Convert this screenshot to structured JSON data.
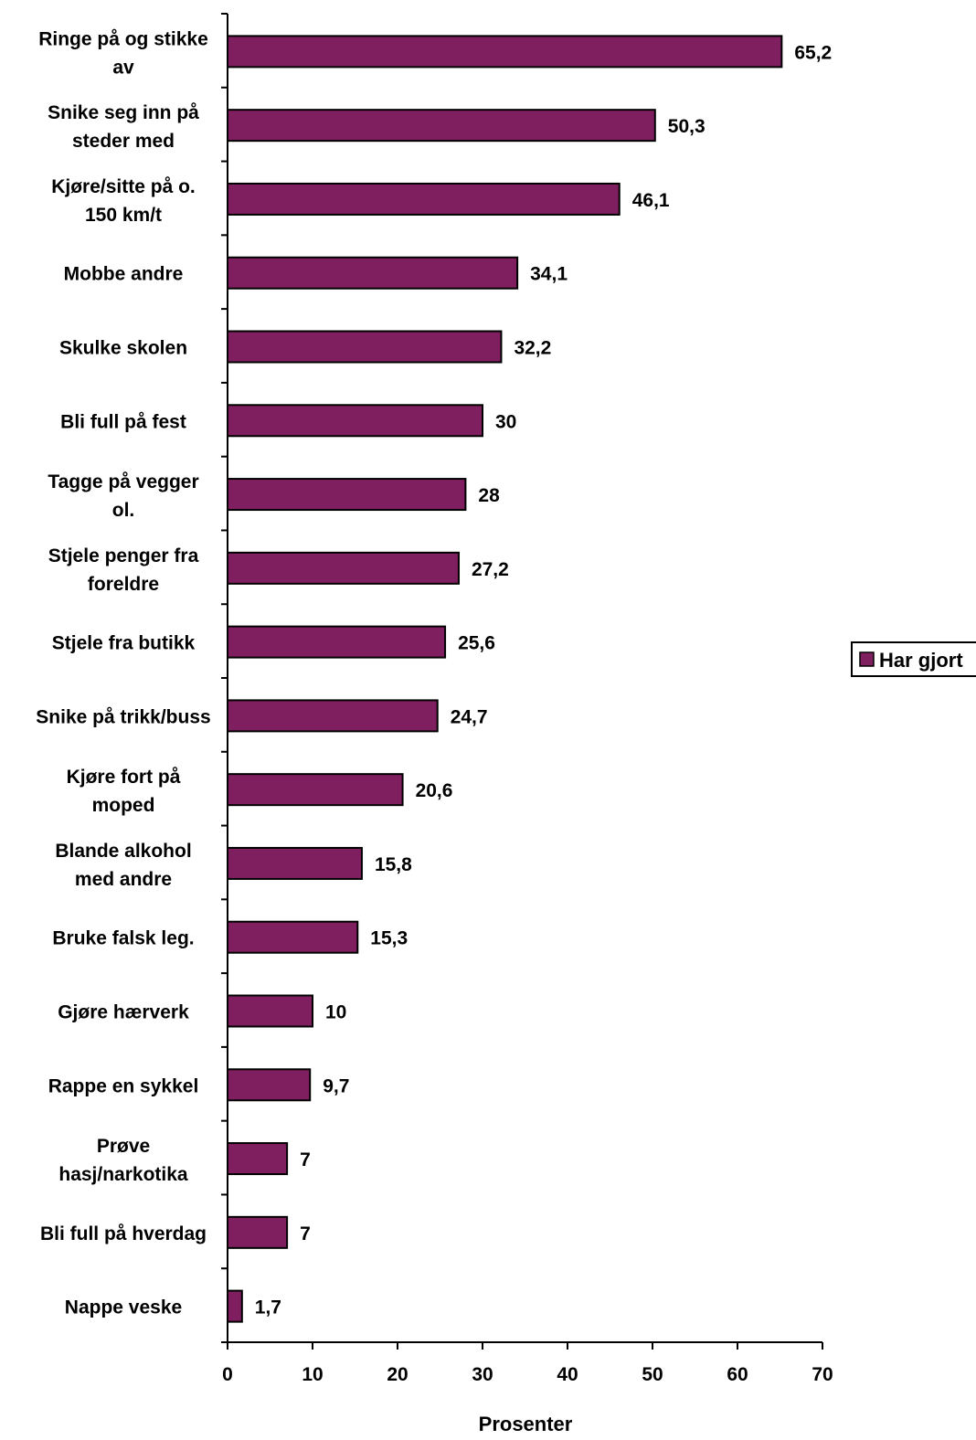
{
  "chart_data": {
    "type": "bar",
    "orientation": "horizontal",
    "categories": [
      "Ringe på og stikke av",
      "Snike seg inn på steder med",
      "Kjøre/sitte på o. 150 km/t",
      "Mobbe andre",
      "Skulke skolen",
      "Bli full på fest",
      "Tagge på vegger ol.",
      "Stjele penger fra foreldre",
      "Stjele fra butikk",
      "Snike på trikk/buss",
      "Kjøre fort på moped",
      "Blande alkohol med andre",
      "Bruke falsk leg.",
      "Gjøre hærverk",
      "Rappe en sykkel",
      "Prøve hasj/narkotika",
      "Bli full på hverdag",
      "Nappe veske"
    ],
    "category_lines": [
      [
        "Ringe på og stikke",
        "av"
      ],
      [
        "Snike seg inn på",
        "steder med"
      ],
      [
        "Kjøre/sitte på o.",
        "150 km/t"
      ],
      [
        "Mobbe andre"
      ],
      [
        "Skulke skolen"
      ],
      [
        "Bli full på fest"
      ],
      [
        "Tagge på vegger",
        "ol."
      ],
      [
        "Stjele penger fra",
        "foreldre"
      ],
      [
        "Stjele fra butikk"
      ],
      [
        "Snike på trikk/buss"
      ],
      [
        "Kjøre fort på",
        "moped"
      ],
      [
        "Blande alkohol",
        "med andre"
      ],
      [
        "Bruke falsk leg."
      ],
      [
        "Gjøre hærverk"
      ],
      [
        "Rappe en sykkel"
      ],
      [
        "Prøve",
        "hasj/narkotika"
      ],
      [
        "Bli full på hverdag"
      ],
      [
        "Nappe veske"
      ]
    ],
    "series": [
      {
        "name": "Har gjort",
        "values": [
          65.2,
          50.3,
          46.1,
          34.1,
          32.2,
          30,
          28,
          27.2,
          25.6,
          24.7,
          20.6,
          15.8,
          15.3,
          10,
          9.7,
          7,
          7,
          1.7
        ],
        "labels": [
          "65,2",
          "50,3",
          "46,1",
          "34,1",
          "32,2",
          "30",
          "28",
          "27,2",
          "25,6",
          "24,7",
          "20,6",
          "15,8",
          "15,3",
          "10",
          "9,7",
          "7",
          "7",
          "1,7"
        ],
        "color": "#7f1f5f"
      }
    ],
    "xlabel": "Prosenter",
    "ylabel": "",
    "xlim": [
      0,
      70
    ],
    "xticks": [
      0,
      10,
      20,
      30,
      40,
      50,
      60,
      70
    ],
    "xtick_labels": [
      "0",
      "10",
      "20",
      "30",
      "40",
      "50",
      "60",
      "70"
    ],
    "grid": false,
    "legend_position": "right"
  }
}
